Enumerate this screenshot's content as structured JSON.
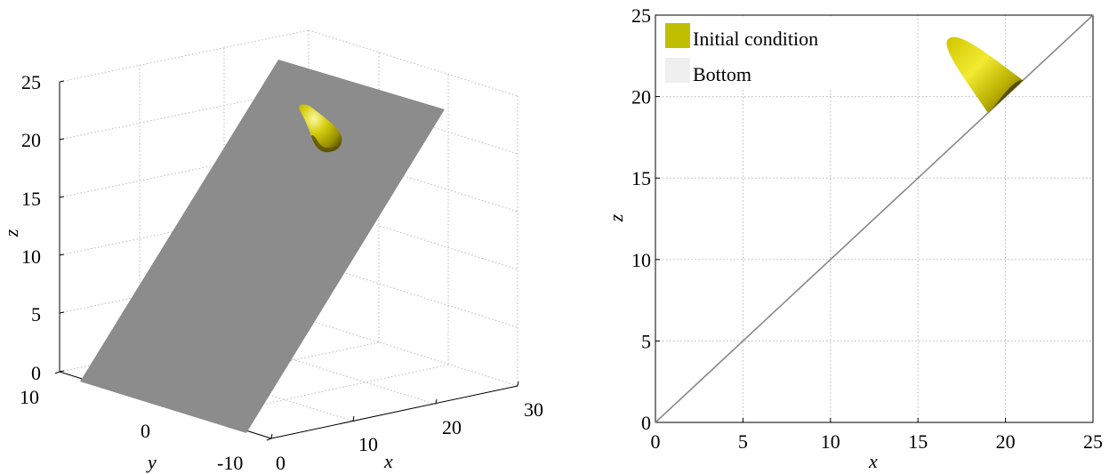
{
  "chart_data": [
    {
      "type": "surface3d",
      "xlabel": "x",
      "ylabel": "y",
      "zlabel": "z",
      "xlim": [
        0,
        30
      ],
      "ylim": [
        -10,
        10
      ],
      "zlim": [
        0,
        25
      ],
      "xticks": [
        0,
        10,
        20,
        30
      ],
      "yticks": [
        10,
        0,
        -10
      ],
      "zticks": [
        0,
        5,
        10,
        15,
        20,
        25
      ],
      "grid": true,
      "series": [
        {
          "kind": "plane",
          "color": "#8c8c8c",
          "equation_z_equals_x": true
        },
        {
          "kind": "bump",
          "color": "#c8c000",
          "apex": [
            20,
            0,
            23.5
          ]
        }
      ]
    },
    {
      "type": "line",
      "xlabel": "x",
      "ylabel": "z",
      "xlim": [
        0,
        25
      ],
      "ylim": [
        0,
        25
      ],
      "xticks": [
        0,
        5,
        10,
        15,
        20,
        25
      ],
      "yticks": [
        0,
        5,
        10,
        15,
        20,
        25
      ],
      "grid": true,
      "legend_position": "top-left",
      "series": [
        {
          "name": "Initial condition",
          "color": "#bfbf00",
          "shape": "bump",
          "points": [
            [
              19,
              19
            ],
            [
              16.7,
              23.5
            ],
            [
              21,
              21
            ]
          ]
        },
        {
          "name": "Bottom",
          "color": "#888888",
          "x": [
            0,
            25
          ],
          "y": [
            0,
            25
          ]
        }
      ]
    }
  ]
}
